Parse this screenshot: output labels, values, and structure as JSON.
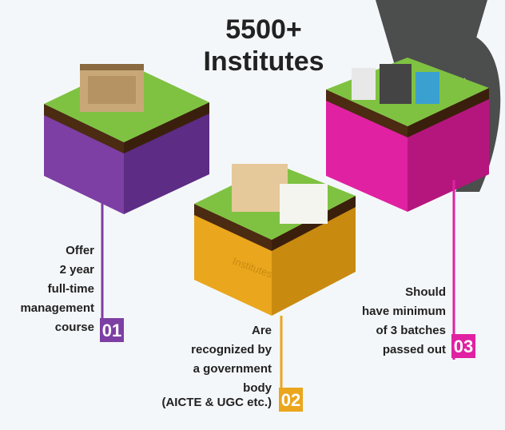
{
  "header": {
    "title_line1": "5500+",
    "title_line2": "Institutes"
  },
  "blocks": [
    {
      "label": "Institutes"
    }
  ],
  "items": [
    {
      "number": "01",
      "lines": [
        "Offer",
        "2 year",
        "full-time",
        "management",
        "course"
      ]
    },
    {
      "number": "02",
      "lines": [
        "Are",
        "recognized by",
        "a government",
        "body"
      ],
      "note": "(AICTE & UGC etc.)"
    },
    {
      "number": "03",
      "lines": [
        "Should",
        "have minimum",
        "of 3 batches",
        "passed out"
      ]
    }
  ]
}
